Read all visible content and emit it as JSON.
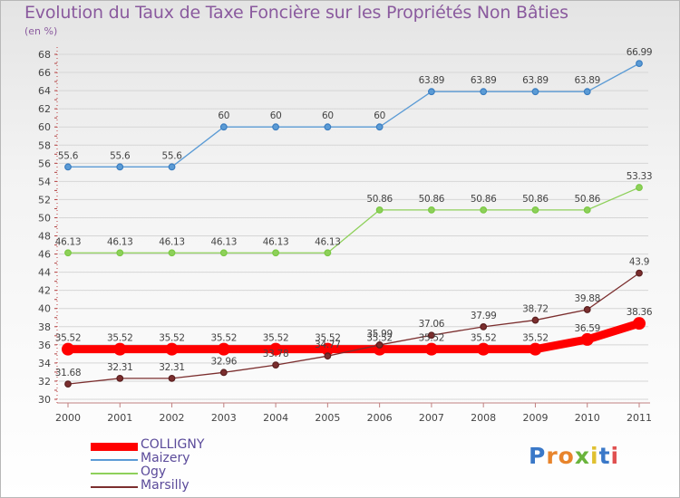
{
  "page": {
    "title": "Evolution du Taux de Taxe Foncière sur les Propriétés Non Bâties",
    "unit": "(en %)"
  },
  "logo": {
    "text": "Proxiti",
    "colors": [
      "#3a78c8",
      "#e8842c",
      "#e8842c",
      "#6ab43c",
      "#e0c030",
      "#3a78c8",
      "#e05050"
    ]
  },
  "chart_data": {
    "type": "line",
    "title": "Evolution du Taux de Taxe Foncière sur les Propriétés Non Bâties",
    "ylabel": "(en %)",
    "xlabel": "",
    "categories": [
      "2000",
      "2001",
      "2002",
      "2003",
      "2004",
      "2005",
      "2006",
      "2007",
      "2008",
      "2009",
      "2010",
      "2011"
    ],
    "ylim": [
      30,
      68
    ],
    "yticks": [
      30,
      32,
      34,
      36,
      38,
      40,
      42,
      44,
      46,
      48,
      50,
      52,
      54,
      56,
      58,
      60,
      62,
      64,
      66,
      68
    ],
    "grid": "horizontal",
    "series": [
      {
        "name": "COLLIGNY",
        "color": "#ff0000",
        "emphasis": true,
        "values": [
          35.52,
          35.52,
          35.52,
          35.52,
          35.52,
          35.52,
          35.52,
          35.52,
          35.52,
          35.52,
          36.59,
          38.36
        ],
        "labels": [
          "35.52",
          "35.52",
          "35.52",
          "35.52",
          "35.52",
          "35.52",
          "35.52",
          "35.52",
          "35.52",
          "35.52",
          "36.59",
          "38.36"
        ]
      },
      {
        "name": "Maizery",
        "color": "#5b9bd5",
        "marker": "#3a7dc0",
        "values": [
          55.6,
          55.6,
          55.6,
          60,
          60,
          60,
          60,
          63.89,
          63.89,
          63.89,
          63.89,
          66.99
        ],
        "labels": [
          "55.6",
          "55.6",
          "55.6",
          "60",
          "60",
          "60",
          "60",
          "63.89",
          "63.89",
          "63.89",
          "63.89",
          "66.99"
        ]
      },
      {
        "name": "Ogy",
        "color": "#8ed05a",
        "marker": "#7ac943",
        "values": [
          46.13,
          46.13,
          46.13,
          46.13,
          46.13,
          46.13,
          50.86,
          50.86,
          50.86,
          50.86,
          50.86,
          53.33
        ],
        "labels": [
          "46.13",
          "46.13",
          "46.13",
          "46.13",
          "46.13",
          "46.13",
          "50.86",
          "50.86",
          "50.86",
          "50.86",
          "50.86",
          "53.33"
        ]
      },
      {
        "name": "Marsilly",
        "color": "#7b2e2e",
        "marker": "#5a1f1f",
        "values": [
          31.68,
          32.31,
          32.31,
          32.96,
          33.78,
          34.77,
          35.99,
          37.06,
          37.99,
          38.72,
          39.88,
          43.9
        ],
        "labels": [
          "31.68",
          "32.31",
          "32.31",
          "32.96",
          "33.78",
          "34.77",
          "35.99",
          "37.06",
          "37.99",
          "38.72",
          "39.88",
          "43.9"
        ]
      }
    ],
    "legend": {
      "placement": "bottom-left",
      "entries": [
        "COLLIGNY",
        "Maizery",
        "Ogy",
        "Marsilly"
      ]
    }
  }
}
